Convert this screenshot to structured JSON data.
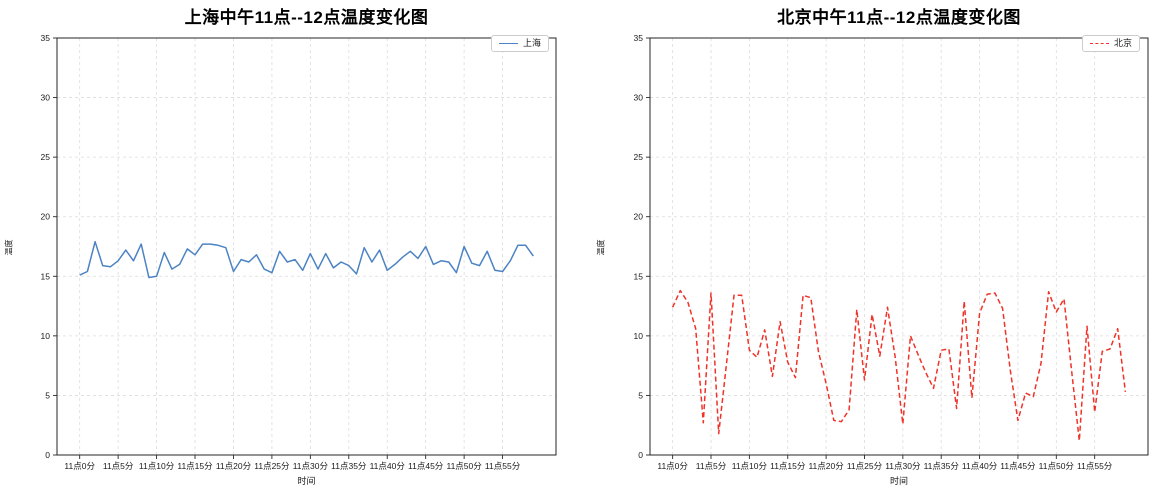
{
  "figure_background": "#ffffff",
  "chart_data": [
    {
      "type": "line",
      "series_id": "shanghai",
      "title": "上海中午11点--12点温度变化图",
      "xlabel": "时间",
      "ylabel": "温度",
      "legend_label": "上海",
      "legend_position": "upper right",
      "grid": true,
      "line": {
        "color": "#4c83c3",
        "style": "solid",
        "width": 1.5
      },
      "ylim": [
        0,
        35
      ],
      "y_ticks": [
        0,
        5,
        10,
        15,
        20,
        25,
        30,
        35
      ],
      "x_tick_minutes": [
        0,
        5,
        10,
        15,
        20,
        25,
        30,
        35,
        40,
        45,
        50,
        55
      ],
      "x_tick_labels": [
        "11点0分",
        "11点5分",
        "11点10分",
        "11点15分",
        "11点20分",
        "11点25分",
        "11点30分",
        "11点35分",
        "11点40分",
        "11点45分",
        "11点50分",
        "11点55分"
      ],
      "x": [
        0,
        1,
        2,
        3,
        4,
        5,
        6,
        7,
        8,
        9,
        10,
        11,
        12,
        13,
        14,
        15,
        16,
        17,
        18,
        19,
        20,
        21,
        22,
        23,
        24,
        25,
        26,
        27,
        28,
        29,
        30,
        31,
        32,
        33,
        34,
        35,
        36,
        37,
        38,
        39,
        40,
        41,
        42,
        43,
        44,
        45,
        46,
        47,
        48,
        49,
        50,
        51,
        52,
        53,
        54,
        55,
        56,
        57,
        58,
        59
      ],
      "values": [
        15.1,
        15.4,
        17.9,
        15.9,
        15.8,
        16.3,
        17.2,
        16.3,
        17.7,
        14.9,
        15.0,
        17.0,
        15.6,
        16.0,
        17.3,
        16.8,
        17.7,
        17.7,
        17.6,
        17.4,
        15.4,
        16.4,
        16.2,
        16.8,
        15.6,
        15.3,
        17.1,
        16.2,
        16.4,
        15.5,
        16.9,
        15.6,
        16.9,
        15.7,
        16.2,
        15.9,
        15.2,
        17.4,
        16.2,
        17.2,
        15.5,
        16.0,
        16.6,
        17.1,
        16.5,
        17.5,
        16.0,
        16.3,
        16.2,
        15.3,
        17.5,
        16.1,
        15.9,
        17.1,
        15.5,
        15.4,
        16.3,
        17.6,
        17.6,
        16.7
      ]
    },
    {
      "type": "line",
      "series_id": "beijing",
      "title": "北京中午11点--12点温度变化图",
      "xlabel": "时间",
      "ylabel": "温度",
      "legend_label": "北京",
      "legend_position": "upper right",
      "grid": true,
      "line": {
        "color": "#f03228",
        "style": "dashed",
        "width": 1.5
      },
      "ylim": [
        0,
        35
      ],
      "y_ticks": [
        0,
        5,
        10,
        15,
        20,
        25,
        30,
        35
      ],
      "x_tick_minutes": [
        0,
        5,
        10,
        15,
        20,
        25,
        30,
        35,
        40,
        45,
        50,
        55
      ],
      "x_tick_labels": [
        "11点0分",
        "11点5分",
        "11点10分",
        "11点15分",
        "11点20分",
        "11点25分",
        "11点30分",
        "11点35分",
        "11点40分",
        "11点45分",
        "11点50分",
        "11点55分"
      ],
      "x": [
        0,
        1,
        2,
        3,
        4,
        5,
        6,
        7,
        8,
        9,
        10,
        11,
        12,
        13,
        14,
        15,
        16,
        17,
        18,
        19,
        20,
        21,
        22,
        23,
        24,
        25,
        26,
        27,
        28,
        29,
        30,
        31,
        32,
        33,
        34,
        35,
        36,
        37,
        38,
        39,
        40,
        41,
        42,
        43,
        44,
        45,
        46,
        47,
        48,
        49,
        50,
        51,
        52,
        53,
        54,
        55,
        56,
        57,
        58,
        59
      ],
      "values": [
        12.4,
        13.8,
        12.8,
        10.6,
        2.7,
        13.6,
        1.8,
        7.5,
        13.4,
        13.4,
        8.8,
        8.2,
        10.5,
        6.6,
        11.2,
        7.8,
        6.5,
        13.4,
        13.2,
        8.7,
        6.0,
        2.9,
        2.8,
        3.8,
        12.2,
        6.3,
        11.8,
        8.3,
        12.4,
        8.2,
        2.6,
        10.0,
        8.4,
        6.9,
        5.6,
        8.8,
        8.9,
        3.9,
        12.9,
        4.8,
        11.9,
        13.5,
        13.6,
        12.3,
        7.1,
        2.9,
        5.2,
        4.9,
        7.7,
        13.7,
        12.0,
        13.1,
        7.0,
        1.2,
        10.8,
        3.6,
        8.7,
        8.9,
        10.6,
        5.3
      ]
    }
  ]
}
